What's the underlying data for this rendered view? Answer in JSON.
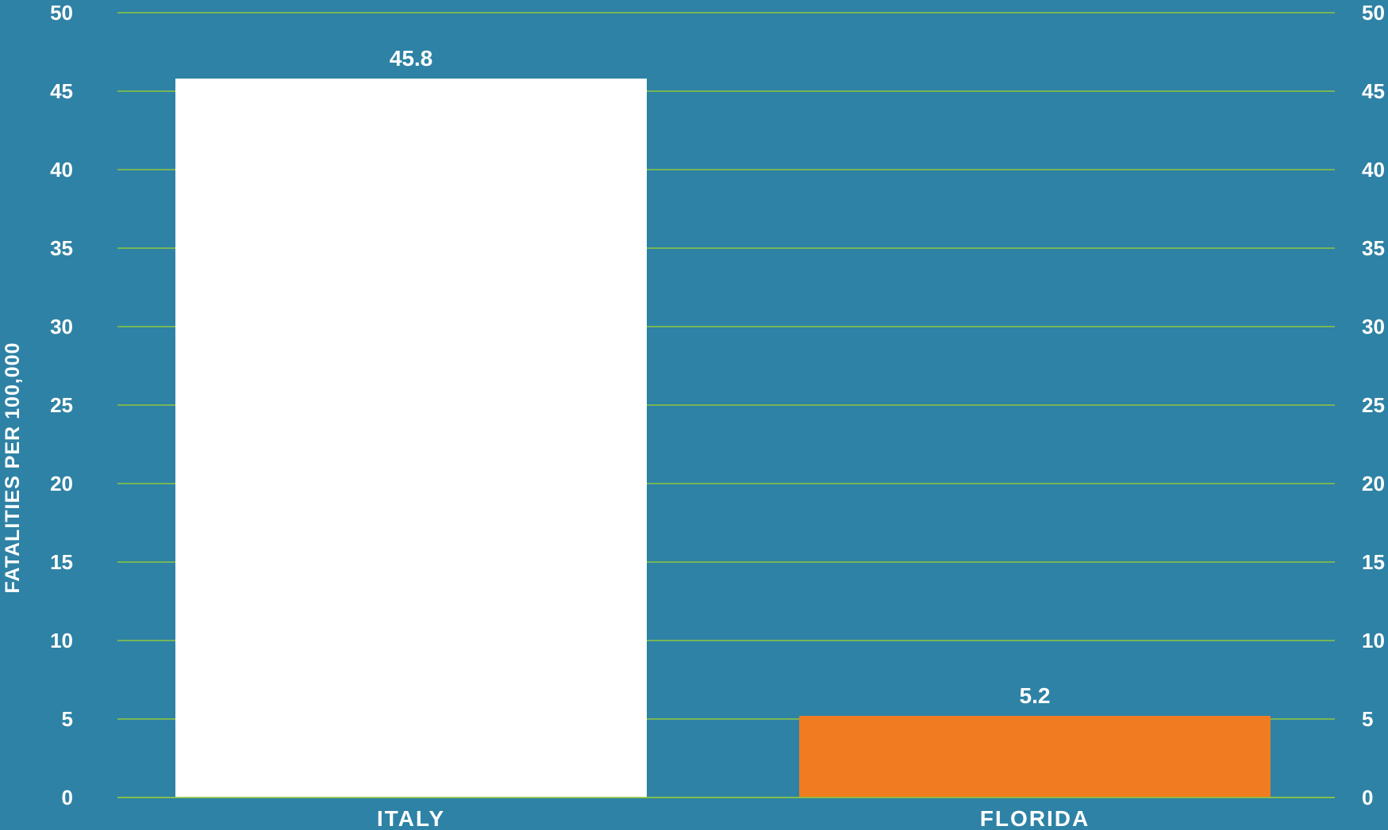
{
  "chart_data": {
    "type": "bar",
    "categories": [
      "ITALY",
      "FLORIDA"
    ],
    "values": [
      45.8,
      5.2
    ],
    "value_labels": [
      "45.8",
      "5.2"
    ],
    "ylabel": "FATALITIES PER 100,000",
    "xlabel": "",
    "ylim": [
      0,
      50
    ],
    "yticks": [
      "0",
      "5",
      "10",
      "15",
      "20",
      "25",
      "30",
      "35",
      "40",
      "45",
      "50"
    ],
    "grid": true,
    "secondary_y_axis": true,
    "colors": {
      "background": "#2e82a5",
      "gridline": "#8dc63f",
      "bars": [
        "#ffffff",
        "#f07b20"
      ],
      "text": "#ffffff"
    }
  }
}
